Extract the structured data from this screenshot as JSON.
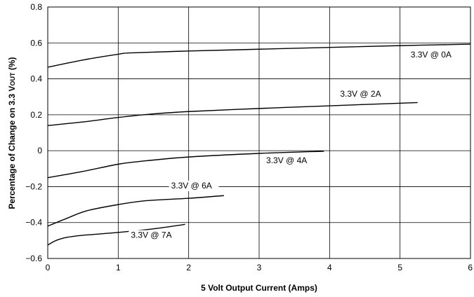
{
  "chart_data": {
    "type": "line",
    "xlabel": "5 Volt Output Current (Amps)",
    "ylabel_main": "Percentage of Change on 3.3 V",
    "ylabel_sub": "OUT",
    "ylabel_tail": " (%)",
    "xlim": [
      0,
      6
    ],
    "ylim": [
      -0.6,
      0.8
    ],
    "x_ticks": [
      0,
      1,
      2,
      3,
      4,
      5,
      6
    ],
    "x_tick_labels": [
      "0",
      "1",
      "2",
      "3",
      "4",
      "5",
      "6"
    ],
    "y_ticks": [
      -0.6,
      -0.4,
      -0.2,
      0,
      0.2,
      0.4,
      0.6,
      0.8
    ],
    "y_tick_labels": [
      "−0.6",
      "−0.4",
      "−0.2",
      "0",
      "0.2",
      "0.4",
      "0.6",
      "0.8"
    ],
    "grid": true,
    "series": [
      {
        "name": "3.3V @ 0A",
        "points": [
          [
            0,
            0.465
          ],
          [
            0.5,
            0.505
          ],
          [
            1.0,
            0.537
          ],
          [
            1.2,
            0.545
          ],
          [
            2.0,
            0.555
          ],
          [
            3.0,
            0.565
          ],
          [
            4.0,
            0.575
          ],
          [
            5.0,
            0.585
          ],
          [
            6.0,
            0.593
          ]
        ],
        "label_at": [
          5.15,
          0.52
        ]
      },
      {
        "name": "3.3V @ 2A",
        "points": [
          [
            0,
            0.14
          ],
          [
            0.5,
            0.16
          ],
          [
            1.0,
            0.185
          ],
          [
            1.5,
            0.205
          ],
          [
            2.0,
            0.218
          ],
          [
            3.0,
            0.235
          ],
          [
            4.0,
            0.25
          ],
          [
            5.25,
            0.268
          ]
        ],
        "label_at": [
          4.15,
          0.3
        ]
      },
      {
        "name": "3.3V @ 4A",
        "points": [
          [
            0,
            -0.15
          ],
          [
            0.5,
            -0.115
          ],
          [
            1.0,
            -0.075
          ],
          [
            1.3,
            -0.06
          ],
          [
            2.0,
            -0.035
          ],
          [
            3.0,
            -0.015
          ],
          [
            3.92,
            -0.003
          ]
        ],
        "label_at": [
          3.1,
          -0.07
        ]
      },
      {
        "name": "3.3V @ 6A",
        "points": [
          [
            0,
            -0.42
          ],
          [
            0.25,
            -0.38
          ],
          [
            0.55,
            -0.335
          ],
          [
            1.0,
            -0.3
          ],
          [
            1.4,
            -0.278
          ],
          [
            2.0,
            -0.265
          ],
          [
            2.5,
            -0.25
          ]
        ],
        "label_at": [
          1.75,
          -0.21
        ]
      },
      {
        "name": "3.3V @ 7A",
        "points": [
          [
            0,
            -0.525
          ],
          [
            0.15,
            -0.495
          ],
          [
            0.4,
            -0.475
          ],
          [
            1.0,
            -0.455
          ],
          [
            1.5,
            -0.435
          ],
          [
            1.95,
            -0.41
          ]
        ],
        "label_at": [
          1.18,
          -0.485
        ]
      }
    ]
  }
}
